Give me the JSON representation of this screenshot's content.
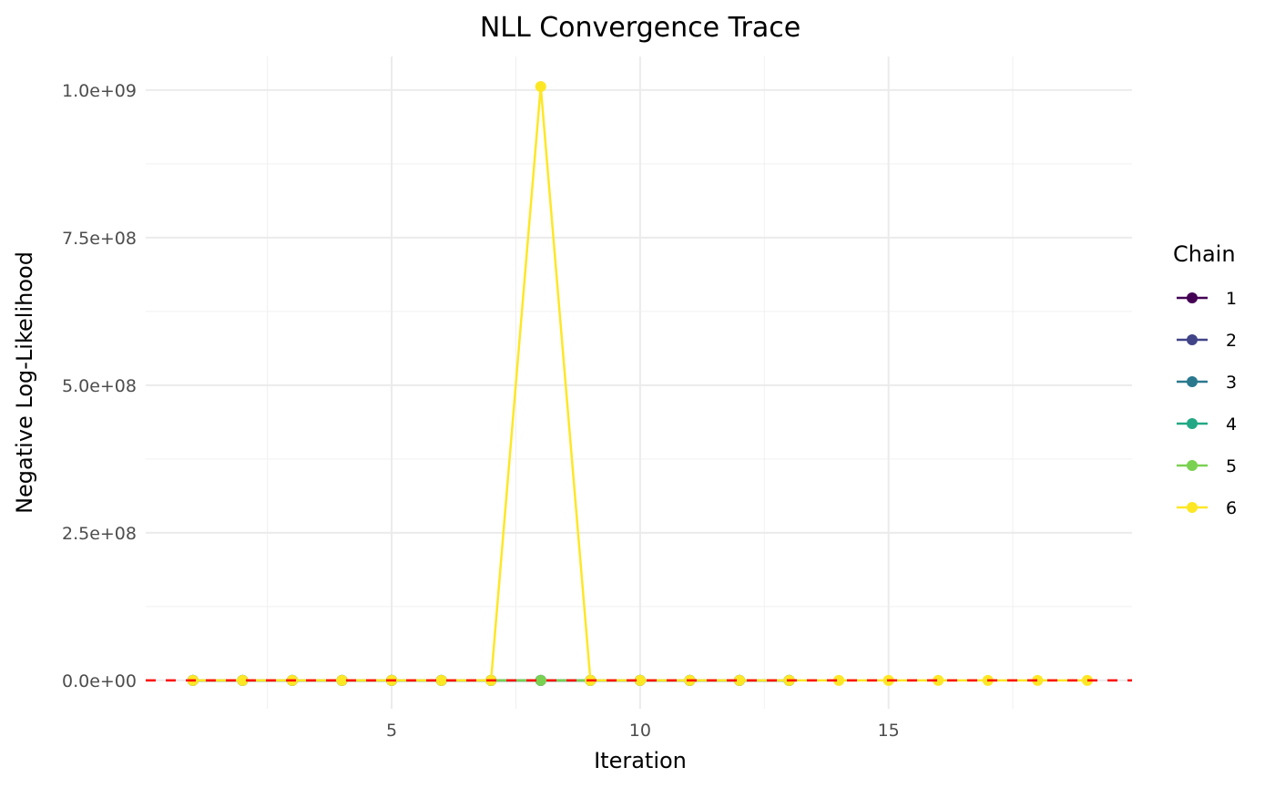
{
  "chart_data": {
    "type": "line",
    "title": "NLL Convergence Trace",
    "xlabel": "Iteration",
    "ylabel": "Negative Log-Likelihood",
    "xlim": [
      0.05,
      19.9
    ],
    "ylim": [
      -48000000,
      1057000000
    ],
    "x_ticks": [
      5,
      10,
      15
    ],
    "x_tick_labels": [
      "5",
      "10",
      "15"
    ],
    "y_ticks": [
      0,
      250000000,
      500000000,
      750000000,
      1000000000
    ],
    "y_tick_labels": [
      "0.0e+00",
      "2.5e+08",
      "5.0e+08",
      "7.5e+08",
      "1.0e+09"
    ],
    "grid": true,
    "legend": {
      "title": "Chain",
      "placement": "right"
    },
    "reference_line": {
      "y": 0,
      "color": "#FF0000",
      "style": "dashed"
    },
    "series": [
      {
        "name": "1",
        "color": "#440154",
        "x": [
          1,
          2,
          3,
          4,
          5,
          6,
          7,
          8,
          9,
          10,
          11,
          12,
          13
        ],
        "y": [
          0,
          0,
          0,
          0,
          0,
          0,
          0,
          0,
          0,
          0,
          0,
          0,
          0
        ]
      },
      {
        "name": "2",
        "color": "#414487",
        "x": [
          1,
          2,
          3,
          4,
          5,
          6,
          7,
          8,
          9,
          10,
          11,
          12,
          13
        ],
        "y": [
          0,
          0,
          0,
          0,
          0,
          0,
          0,
          0,
          0,
          0,
          0,
          0,
          0
        ]
      },
      {
        "name": "3",
        "color": "#2A788E",
        "x": [
          1,
          2,
          3,
          4,
          5,
          6,
          7,
          8,
          9,
          10,
          11,
          12,
          13
        ],
        "y": [
          0,
          0,
          0,
          0,
          0,
          0,
          0,
          0,
          0,
          0,
          0,
          0,
          0
        ]
      },
      {
        "name": "4",
        "color": "#22A884",
        "x": [
          1,
          2,
          3,
          4,
          5,
          6,
          7,
          8,
          9,
          10,
          11,
          12,
          13
        ],
        "y": [
          0,
          0,
          0,
          0,
          0,
          0,
          0,
          0,
          0,
          0,
          0,
          0,
          0
        ]
      },
      {
        "name": "5",
        "color": "#7AD151",
        "x": [
          1,
          2,
          3,
          4,
          5,
          6,
          7,
          8,
          9,
          10,
          11,
          12,
          13
        ],
        "y": [
          0,
          0,
          0,
          0,
          0,
          0,
          0,
          0,
          0,
          0,
          0,
          0,
          0
        ]
      },
      {
        "name": "6",
        "color": "#FDE725",
        "x": [
          1,
          2,
          3,
          4,
          5,
          6,
          7,
          8,
          9,
          10,
          11,
          12,
          13,
          14,
          15,
          16,
          17,
          18,
          19
        ],
        "y": [
          0,
          0,
          0,
          0,
          0,
          0,
          0,
          1006000000,
          0,
          0,
          0,
          0,
          0,
          0,
          0,
          0,
          0,
          0,
          0
        ]
      }
    ]
  }
}
